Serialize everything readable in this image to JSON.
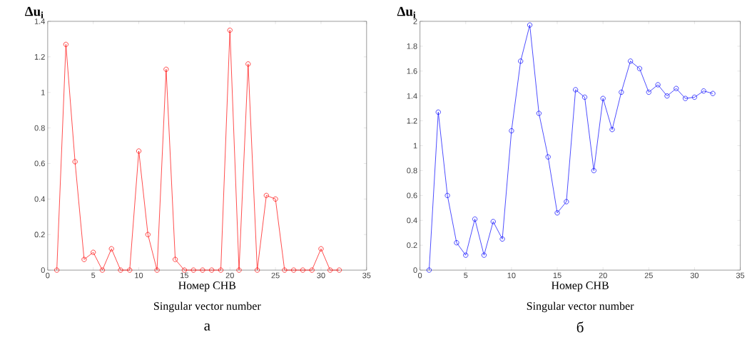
{
  "chart_data": [
    {
      "type": "line",
      "xlabel": "Номер СНВ",
      "ylabel": "Δu$_{i}$",
      "annotations": [
        "Singular vector number",
        "а"
      ],
      "x": [
        1,
        2,
        3,
        4,
        5,
        6,
        7,
        8,
        9,
        10,
        11,
        12,
        13,
        14,
        15,
        16,
        17,
        18,
        19,
        20,
        21,
        22,
        23,
        24,
        25,
        26,
        27,
        28,
        29,
        30,
        31,
        32
      ],
      "values": [
        0,
        1.27,
        0.61,
        0.06,
        0.1,
        0,
        0.12,
        0,
        0,
        0.67,
        0.2,
        0,
        1.13,
        0.06,
        0,
        0,
        0,
        0,
        0,
        1.35,
        0,
        1.16,
        0,
        0.42,
        0.4,
        0,
        0,
        0,
        0,
        0.12,
        0,
        0
      ],
      "color": "#ff0000",
      "marker": "circle",
      "line_style": "solid",
      "xlim": [
        0,
        35
      ],
      "ylim": [
        0,
        1.4
      ],
      "xticks": [
        0,
        5,
        10,
        15,
        20,
        25,
        30,
        35
      ],
      "yticks": [
        0,
        0.2,
        0.4,
        0.6,
        0.8,
        1,
        1.2,
        1.4
      ]
    },
    {
      "type": "line",
      "xlabel": "Номер СНВ",
      "ylabel": "Δu$_{i}$",
      "annotations": [
        "Singular vector number",
        "б"
      ],
      "x": [
        1,
        2,
        3,
        4,
        5,
        6,
        7,
        8,
        9,
        10,
        11,
        12,
        13,
        14,
        15,
        16,
        17,
        18,
        19,
        20,
        21,
        22,
        23,
        24,
        25,
        26,
        27,
        28,
        29,
        30,
        31,
        32
      ],
      "values": [
        0,
        1.27,
        0.6,
        0.22,
        0.12,
        0.41,
        0.12,
        0.39,
        0.25,
        1.12,
        1.68,
        1.97,
        1.26,
        0.91,
        0.46,
        0.55,
        1.45,
        1.39,
        0.8,
        1.38,
        1.13,
        1.43,
        1.68,
        1.62,
        1.43,
        1.49,
        1.4,
        1.46,
        1.38,
        1.39,
        1.44,
        1.42
      ],
      "color": "#0000ff",
      "marker": "circle",
      "line_style": "solid",
      "xlim": [
        0,
        35
      ],
      "ylim": [
        0,
        2
      ],
      "xticks": [
        0,
        5,
        10,
        15,
        20,
        25,
        30,
        35
      ],
      "yticks": [
        0,
        0.2,
        0.4,
        0.6,
        0.8,
        1,
        1.2,
        1.4,
        1.6,
        1.8,
        2
      ]
    }
  ]
}
